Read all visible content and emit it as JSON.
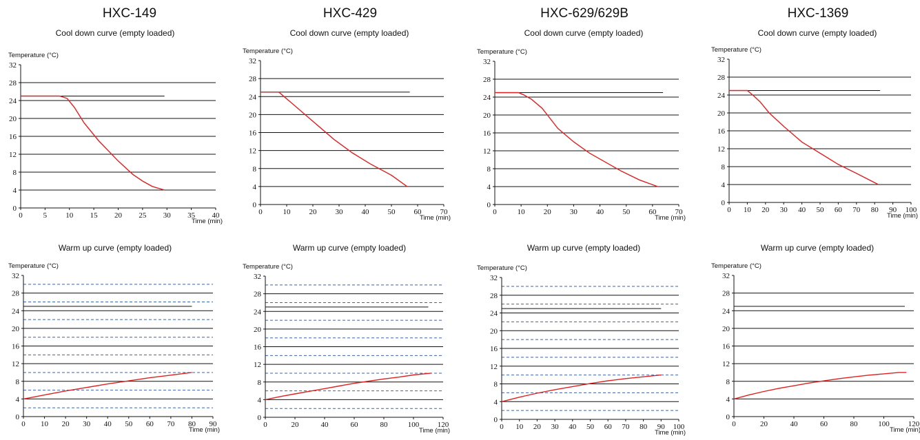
{
  "models": [
    "HXC-149",
    "HXC-429",
    "HXC-629/629B",
    "HXC-1369"
  ],
  "chart_data": [
    {
      "model": "HXC-149",
      "type": "line",
      "title": "Cool down curve (empty loaded)",
      "ylabel": "Temperature (°C)",
      "xlabel": "Time (min)",
      "xlim": [
        0,
        40
      ],
      "ylim": [
        0,
        32
      ],
      "xticks": [
        0,
        5,
        10,
        15,
        20,
        25,
        30,
        35,
        40
      ],
      "yticks": [
        0,
        4,
        8,
        12,
        16,
        20,
        24,
        28,
        32
      ],
      "solid_gridlines": [
        4,
        8,
        12,
        16,
        20,
        24,
        28
      ],
      "dashed_gridlines": [],
      "reference": {
        "y": 25,
        "x_end": 29.5
      },
      "series": [
        {
          "x": [
            0,
            8,
            9.5,
            11,
            13,
            16,
            20,
            23,
            25,
            27,
            29.5
          ],
          "y": [
            25,
            25,
            24.5,
            22.5,
            19,
            15,
            10.5,
            7.5,
            6,
            4.8,
            4
          ]
        }
      ]
    },
    {
      "model": "HXC-429",
      "type": "line",
      "title": "Cool down curve (empty loaded)",
      "ylabel": "Temperature (°C)",
      "xlabel": "Time (min)",
      "xlim": [
        0,
        70
      ],
      "ylim": [
        0,
        32
      ],
      "xticks": [
        0,
        10,
        20,
        30,
        40,
        50,
        60,
        70
      ],
      "yticks": [
        0,
        4,
        8,
        12,
        16,
        20,
        24,
        28,
        32
      ],
      "solid_gridlines": [
        4,
        8,
        12,
        16,
        20,
        24,
        28
      ],
      "dashed_gridlines": [],
      "reference": {
        "y": 25,
        "x_end": 57
      },
      "series": [
        {
          "x": [
            0,
            7,
            9,
            12,
            17,
            22,
            28,
            35,
            42,
            50,
            56
          ],
          "y": [
            25,
            25,
            24,
            22.5,
            20,
            17.5,
            14.5,
            11.5,
            9,
            6.5,
            4
          ]
        }
      ]
    },
    {
      "model": "HXC-629/629B",
      "type": "line",
      "title": "Cool down curve (empty loaded)",
      "ylabel": "Temperature (°C)",
      "xlabel": "Time (min)",
      "xlim": [
        0,
        70
      ],
      "ylim": [
        0,
        32
      ],
      "xticks": [
        0,
        10,
        20,
        30,
        40,
        50,
        60,
        70
      ],
      "yticks": [
        0,
        4,
        8,
        12,
        16,
        20,
        24,
        28,
        32
      ],
      "solid_gridlines": [
        4,
        8,
        12,
        16,
        20,
        24,
        28
      ],
      "dashed_gridlines": [],
      "reference": {
        "y": 25,
        "x_end": 64
      },
      "series": [
        {
          "x": [
            0,
            9,
            11,
            14,
            18,
            20,
            24,
            30,
            36,
            42,
            48,
            55,
            62
          ],
          "y": [
            25,
            25,
            24.5,
            23.5,
            21.5,
            20,
            17,
            14,
            11.5,
            9.5,
            7.5,
            5.5,
            4
          ]
        }
      ]
    },
    {
      "model": "HXC-1369",
      "type": "line",
      "title": "Cool down curve (empty loaded)",
      "ylabel": "Temperature (°C)",
      "xlabel": "Time (min)",
      "xlim": [
        0,
        100
      ],
      "ylim": [
        0,
        32
      ],
      "xticks": [
        0,
        10,
        20,
        30,
        40,
        50,
        60,
        70,
        80,
        90,
        100
      ],
      "yticks": [
        0,
        4,
        8,
        12,
        16,
        20,
        24,
        28,
        32
      ],
      "solid_gridlines": [
        4,
        8,
        12,
        16,
        20,
        24,
        28
      ],
      "dashed_gridlines": [],
      "reference": {
        "y": 25,
        "x_end": 83
      },
      "series": [
        {
          "x": [
            0,
            10,
            13,
            17,
            22,
            30,
            40,
            50,
            60,
            70,
            82
          ],
          "y": [
            25,
            25,
            24,
            22.5,
            20,
            17,
            13.5,
            11,
            8.5,
            6.5,
            4
          ]
        }
      ]
    },
    {
      "model": "HXC-149",
      "type": "line",
      "title": "Warm up  curve (empty loaded)",
      "ylabel": "Temperature (°C)",
      "xlabel": "Time (min)",
      "xlim": [
        0,
        90
      ],
      "ylim": [
        0,
        32
      ],
      "xticks": [
        0,
        10,
        20,
        30,
        40,
        50,
        60,
        70,
        80,
        90
      ],
      "yticks": [
        0,
        4,
        8,
        12,
        16,
        20,
        24,
        28,
        32
      ],
      "solid_gridlines": [
        4,
        8,
        12,
        16,
        20,
        24,
        28
      ],
      "dashed_gridlines": [
        2,
        6,
        10,
        14,
        18,
        22,
        26,
        30
      ],
      "reference": {
        "y": 25,
        "x_end": 80
      },
      "series": [
        {
          "x": [
            0,
            10,
            20,
            30,
            40,
            50,
            60,
            70,
            80
          ],
          "y": [
            4,
            4.9,
            5.8,
            6.6,
            7.4,
            8.1,
            8.8,
            9.4,
            10
          ]
        }
      ]
    },
    {
      "model": "HXC-429",
      "type": "line",
      "title": "Warm up  curve (empty loaded)",
      "ylabel": "Temperature (°C)",
      "xlabel": "Time (min)",
      "xlim": [
        0,
        120
      ],
      "ylim": [
        0,
        32
      ],
      "xticks": [
        0,
        20,
        40,
        60,
        80,
        100,
        120
      ],
      "yticks": [
        0,
        4,
        8,
        12,
        16,
        20,
        24,
        28,
        32
      ],
      "solid_gridlines": [
        4,
        8,
        12,
        16,
        20,
        24,
        28
      ],
      "dashed_gridlines": [
        2,
        6,
        10,
        14,
        18,
        22,
        26,
        30
      ],
      "reference": {
        "y": 25,
        "x_end": 110
      },
      "series": [
        {
          "x": [
            0,
            10,
            20,
            30,
            40,
            50,
            60,
            70,
            80,
            90,
            100,
            112
          ],
          "y": [
            4,
            4.7,
            5.3,
            5.9,
            6.5,
            7.1,
            7.7,
            8.2,
            8.7,
            9.1,
            9.6,
            10
          ]
        }
      ]
    },
    {
      "model": "HXC-629/629B",
      "type": "line",
      "title": "Warm up  curve (empty loaded)",
      "ylabel": "Temperature (°C)",
      "xlabel": "Time (min)",
      "xlim": [
        0,
        100
      ],
      "ylim": [
        0,
        32
      ],
      "xticks": [
        0,
        10,
        20,
        30,
        40,
        50,
        60,
        70,
        80,
        90,
        100
      ],
      "yticks": [
        0,
        4,
        8,
        12,
        16,
        20,
        24,
        28,
        32
      ],
      "solid_gridlines": [
        4,
        8,
        12,
        16,
        20,
        24,
        28
      ],
      "dashed_gridlines": [
        2,
        6,
        10,
        14,
        18,
        22,
        26,
        30
      ],
      "reference": {
        "y": 25,
        "x_end": 90
      },
      "series": [
        {
          "x": [
            0,
            10,
            20,
            30,
            40,
            50,
            60,
            70,
            80,
            90
          ],
          "y": [
            4,
            5,
            5.9,
            6.7,
            7.4,
            8.1,
            8.7,
            9.2,
            9.6,
            10
          ]
        }
      ]
    },
    {
      "model": "HXC-1369",
      "type": "line",
      "title": "Warm up  curve (empty loaded)",
      "ylabel": "Temperature (°C)",
      "xlabel": "Time (min)",
      "xlim": [
        0,
        120
      ],
      "ylim": [
        0,
        32
      ],
      "xticks": [
        0,
        20,
        40,
        60,
        80,
        100,
        120
      ],
      "yticks": [
        0,
        4,
        8,
        12,
        16,
        20,
        24,
        28,
        32
      ],
      "solid_gridlines": [
        4,
        8,
        12,
        16,
        20,
        24,
        28
      ],
      "dashed_gridlines": [],
      "reference": {
        "y": 25,
        "x_end": 114
      },
      "series": [
        {
          "x": [
            0,
            10,
            20,
            30,
            40,
            50,
            60,
            70,
            80,
            90,
            100,
            110,
            115
          ],
          "y": [
            4,
            4.9,
            5.7,
            6.4,
            7,
            7.6,
            8.1,
            8.6,
            9,
            9.4,
            9.7,
            10,
            10
          ]
        }
      ]
    }
  ]
}
